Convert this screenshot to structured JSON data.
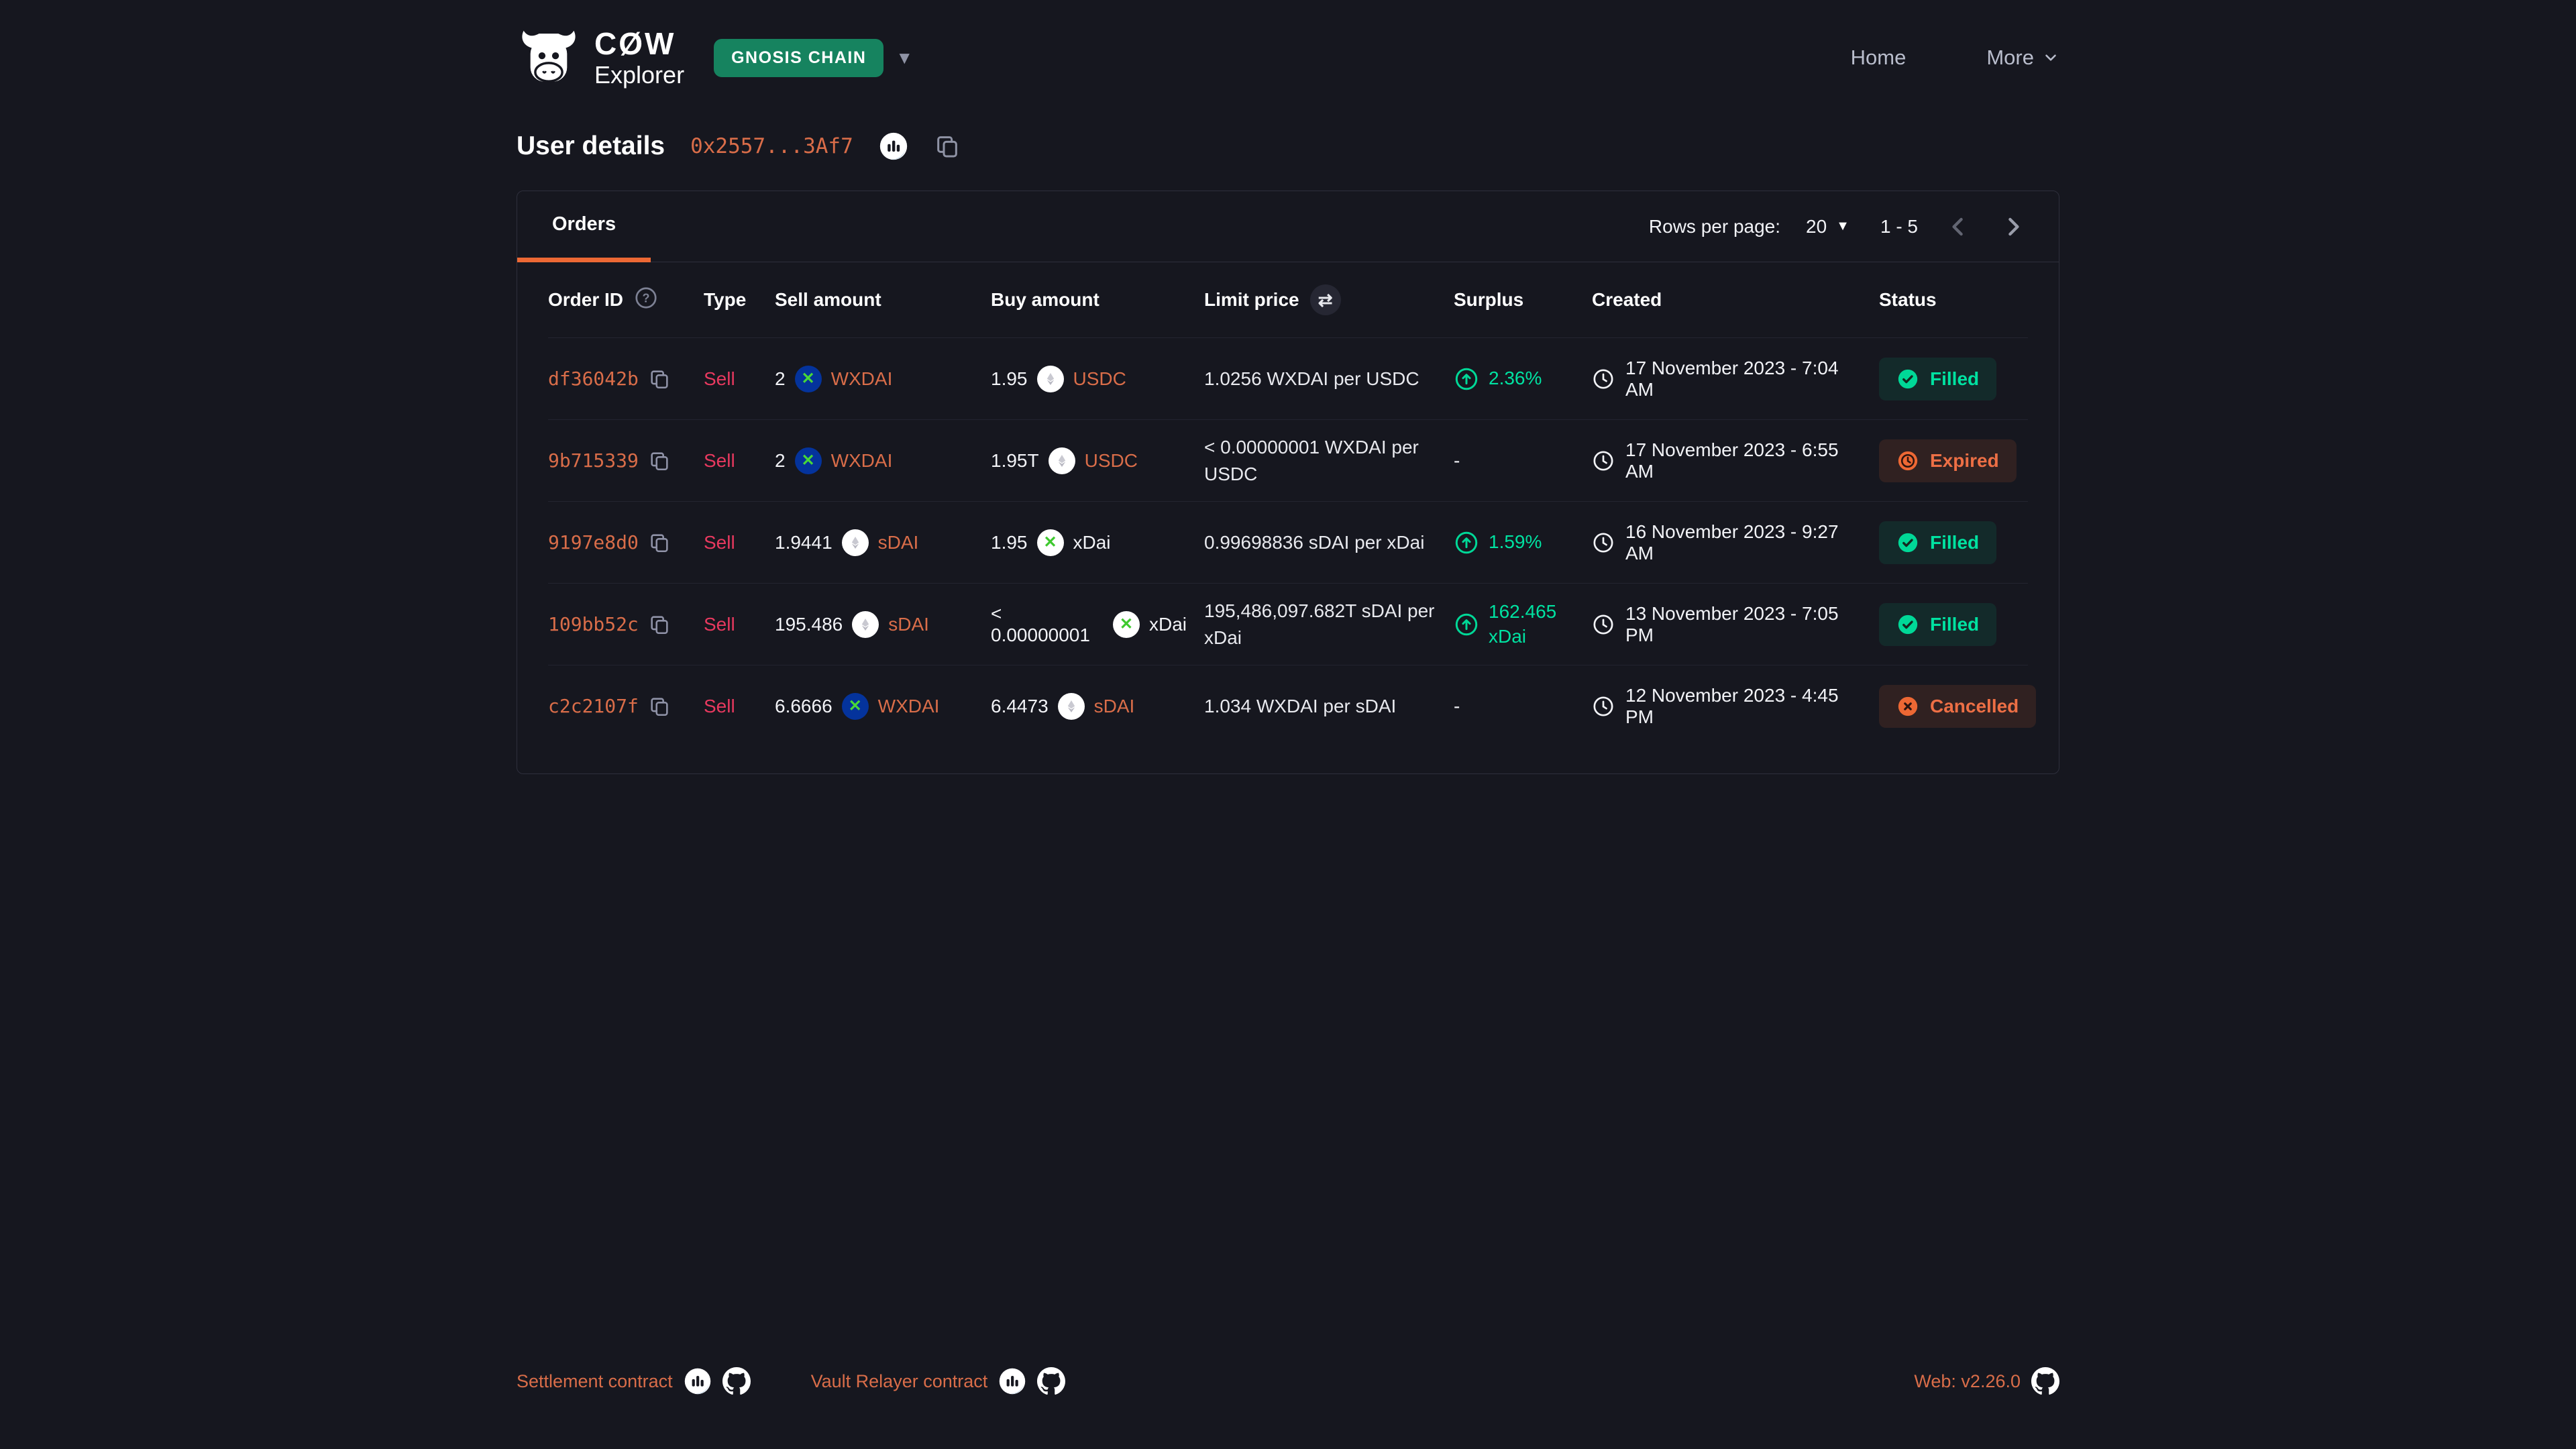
{
  "brand": {
    "wordmark": "CØW",
    "subtitle": "Explorer"
  },
  "network_selector": {
    "label": "GNOSIS CHAIN"
  },
  "nav": {
    "home_label": "Home",
    "more_label": "More"
  },
  "page": {
    "title": "User details",
    "address": "0x2557...3Af7"
  },
  "panel": {
    "tab_orders_label": "Orders",
    "pagination": {
      "rows_label": "Rows per page:",
      "rows_value": "20",
      "range": "1 - 5"
    }
  },
  "table": {
    "columns": [
      "Order ID",
      "Type",
      "Sell amount",
      "Buy amount",
      "Limit price",
      "Surplus",
      "Created",
      "Status"
    ],
    "rows": [
      {
        "id": "df36042b",
        "type": "Sell",
        "sell": {
          "amount": "2",
          "token": "WXDAI",
          "icon": "wxdai",
          "link": true
        },
        "buy": {
          "amount": "1.95",
          "token": "USDC",
          "icon": "generic",
          "link": true
        },
        "limit_price": "1.0256 WXDAI per USDC",
        "surplus": {
          "value": "2.36%",
          "positive": true
        },
        "created": "17 November 2023 - 7:04 AM",
        "status": "Filled"
      },
      {
        "id": "9b715339",
        "type": "Sell",
        "sell": {
          "amount": "2",
          "token": "WXDAI",
          "icon": "wxdai",
          "link": true
        },
        "buy": {
          "amount": "1.95T",
          "token": "USDC",
          "icon": "generic",
          "link": true
        },
        "limit_price": "< 0.00000001 WXDAI per USDC",
        "surplus": {
          "value": "-",
          "positive": false
        },
        "created": "17 November 2023 - 6:55 AM",
        "status": "Expired"
      },
      {
        "id": "9197e8d0",
        "type": "Sell",
        "sell": {
          "amount": "1.9441",
          "token": "sDAI",
          "icon": "generic",
          "link": true
        },
        "buy": {
          "amount": "1.95",
          "token": "xDai",
          "icon": "xdai",
          "link": false
        },
        "limit_price": "0.99698836 sDAI per xDai",
        "surplus": {
          "value": "1.59%",
          "positive": true
        },
        "created": "16 November 2023 - 9:27 AM",
        "status": "Filled"
      },
      {
        "id": "109bb52c",
        "type": "Sell",
        "sell": {
          "amount": "195.486",
          "token": "sDAI",
          "icon": "generic",
          "link": true
        },
        "buy": {
          "amount": "< 0.00000001",
          "token": "xDai",
          "icon": "xdai",
          "link": false
        },
        "limit_price": "195,486,097.682T sDAI per xDai",
        "surplus": {
          "value": "162.465 xDai",
          "positive": true
        },
        "created": "13 November 2023 - 7:05 PM",
        "status": "Filled"
      },
      {
        "id": "c2c2107f",
        "type": "Sell",
        "sell": {
          "amount": "6.6666",
          "token": "WXDAI",
          "icon": "wxdai",
          "link": true
        },
        "buy": {
          "amount": "6.4473",
          "token": "sDAI",
          "icon": "generic",
          "link": true
        },
        "limit_price": "1.034 WXDAI per sDAI",
        "surplus": {
          "value": "-",
          "positive": false
        },
        "created": "12 November 2023 - 4:45 PM",
        "status": "Cancelled"
      }
    ]
  },
  "footer": {
    "links": [
      {
        "label": "Settlement contract"
      },
      {
        "label": "Vault Relayer contract"
      }
    ],
    "version": "Web: v2.26.0"
  },
  "colors": {
    "accent_orange": "#ed6834",
    "link_orange": "#d96d49",
    "sell_red": "#e8395f",
    "green": "#00e2a1",
    "network_green": "#16835f",
    "background": "#16171f"
  }
}
